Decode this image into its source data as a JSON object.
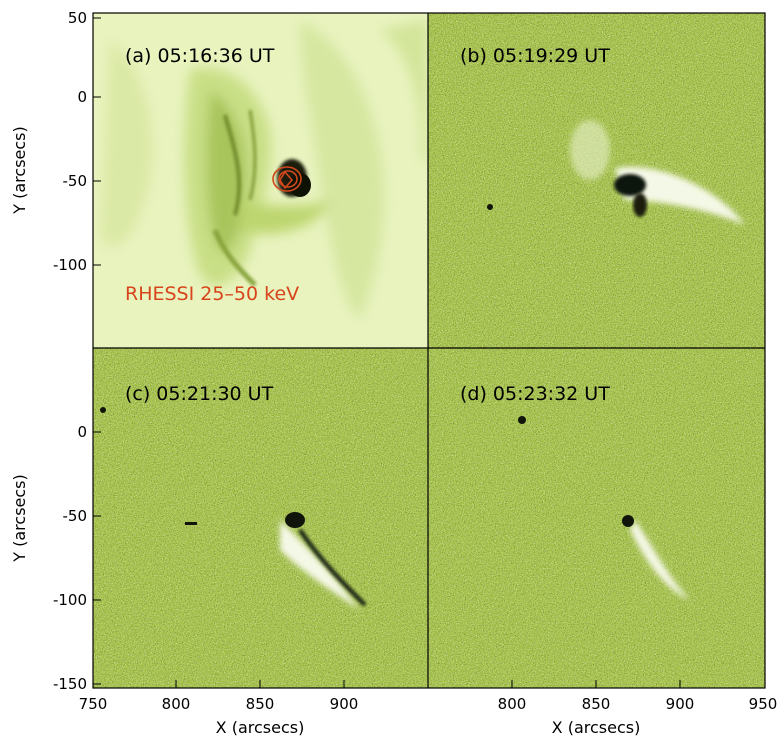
{
  "figure": {
    "panels": [
      {
        "id": "a",
        "label": "(a) 05:16:36 UT",
        "annotation": "RHESSI 25–50 keV"
      },
      {
        "id": "b",
        "label": "(b) 05:19:29 UT"
      },
      {
        "id": "c",
        "label": "(c) 05:21:30 UT"
      },
      {
        "id": "d",
        "label": "(d) 05:23:32 UT"
      }
    ],
    "top_row_y_ticks": [
      "50",
      "0",
      "-50",
      "-100"
    ],
    "bottom_row_y_ticks": [
      "0",
      "-50",
      "-100",
      "-150"
    ],
    "left_col_x_ticks": [
      "750",
      "800",
      "850",
      "900"
    ],
    "right_col_x_ticks": [
      "800",
      "850",
      "900",
      "950"
    ],
    "xlabel": "X (arcsecs)",
    "ylabel": "Y (arcsecs)",
    "colors": {
      "panel_a_bg": "#e8f3be",
      "diff_bg": "#a8c64c",
      "dark_feature": "#1a1f08",
      "bright_feature": "#f4f8e6",
      "contour": "#d0481c",
      "label_red": "#d8441c"
    }
  }
}
